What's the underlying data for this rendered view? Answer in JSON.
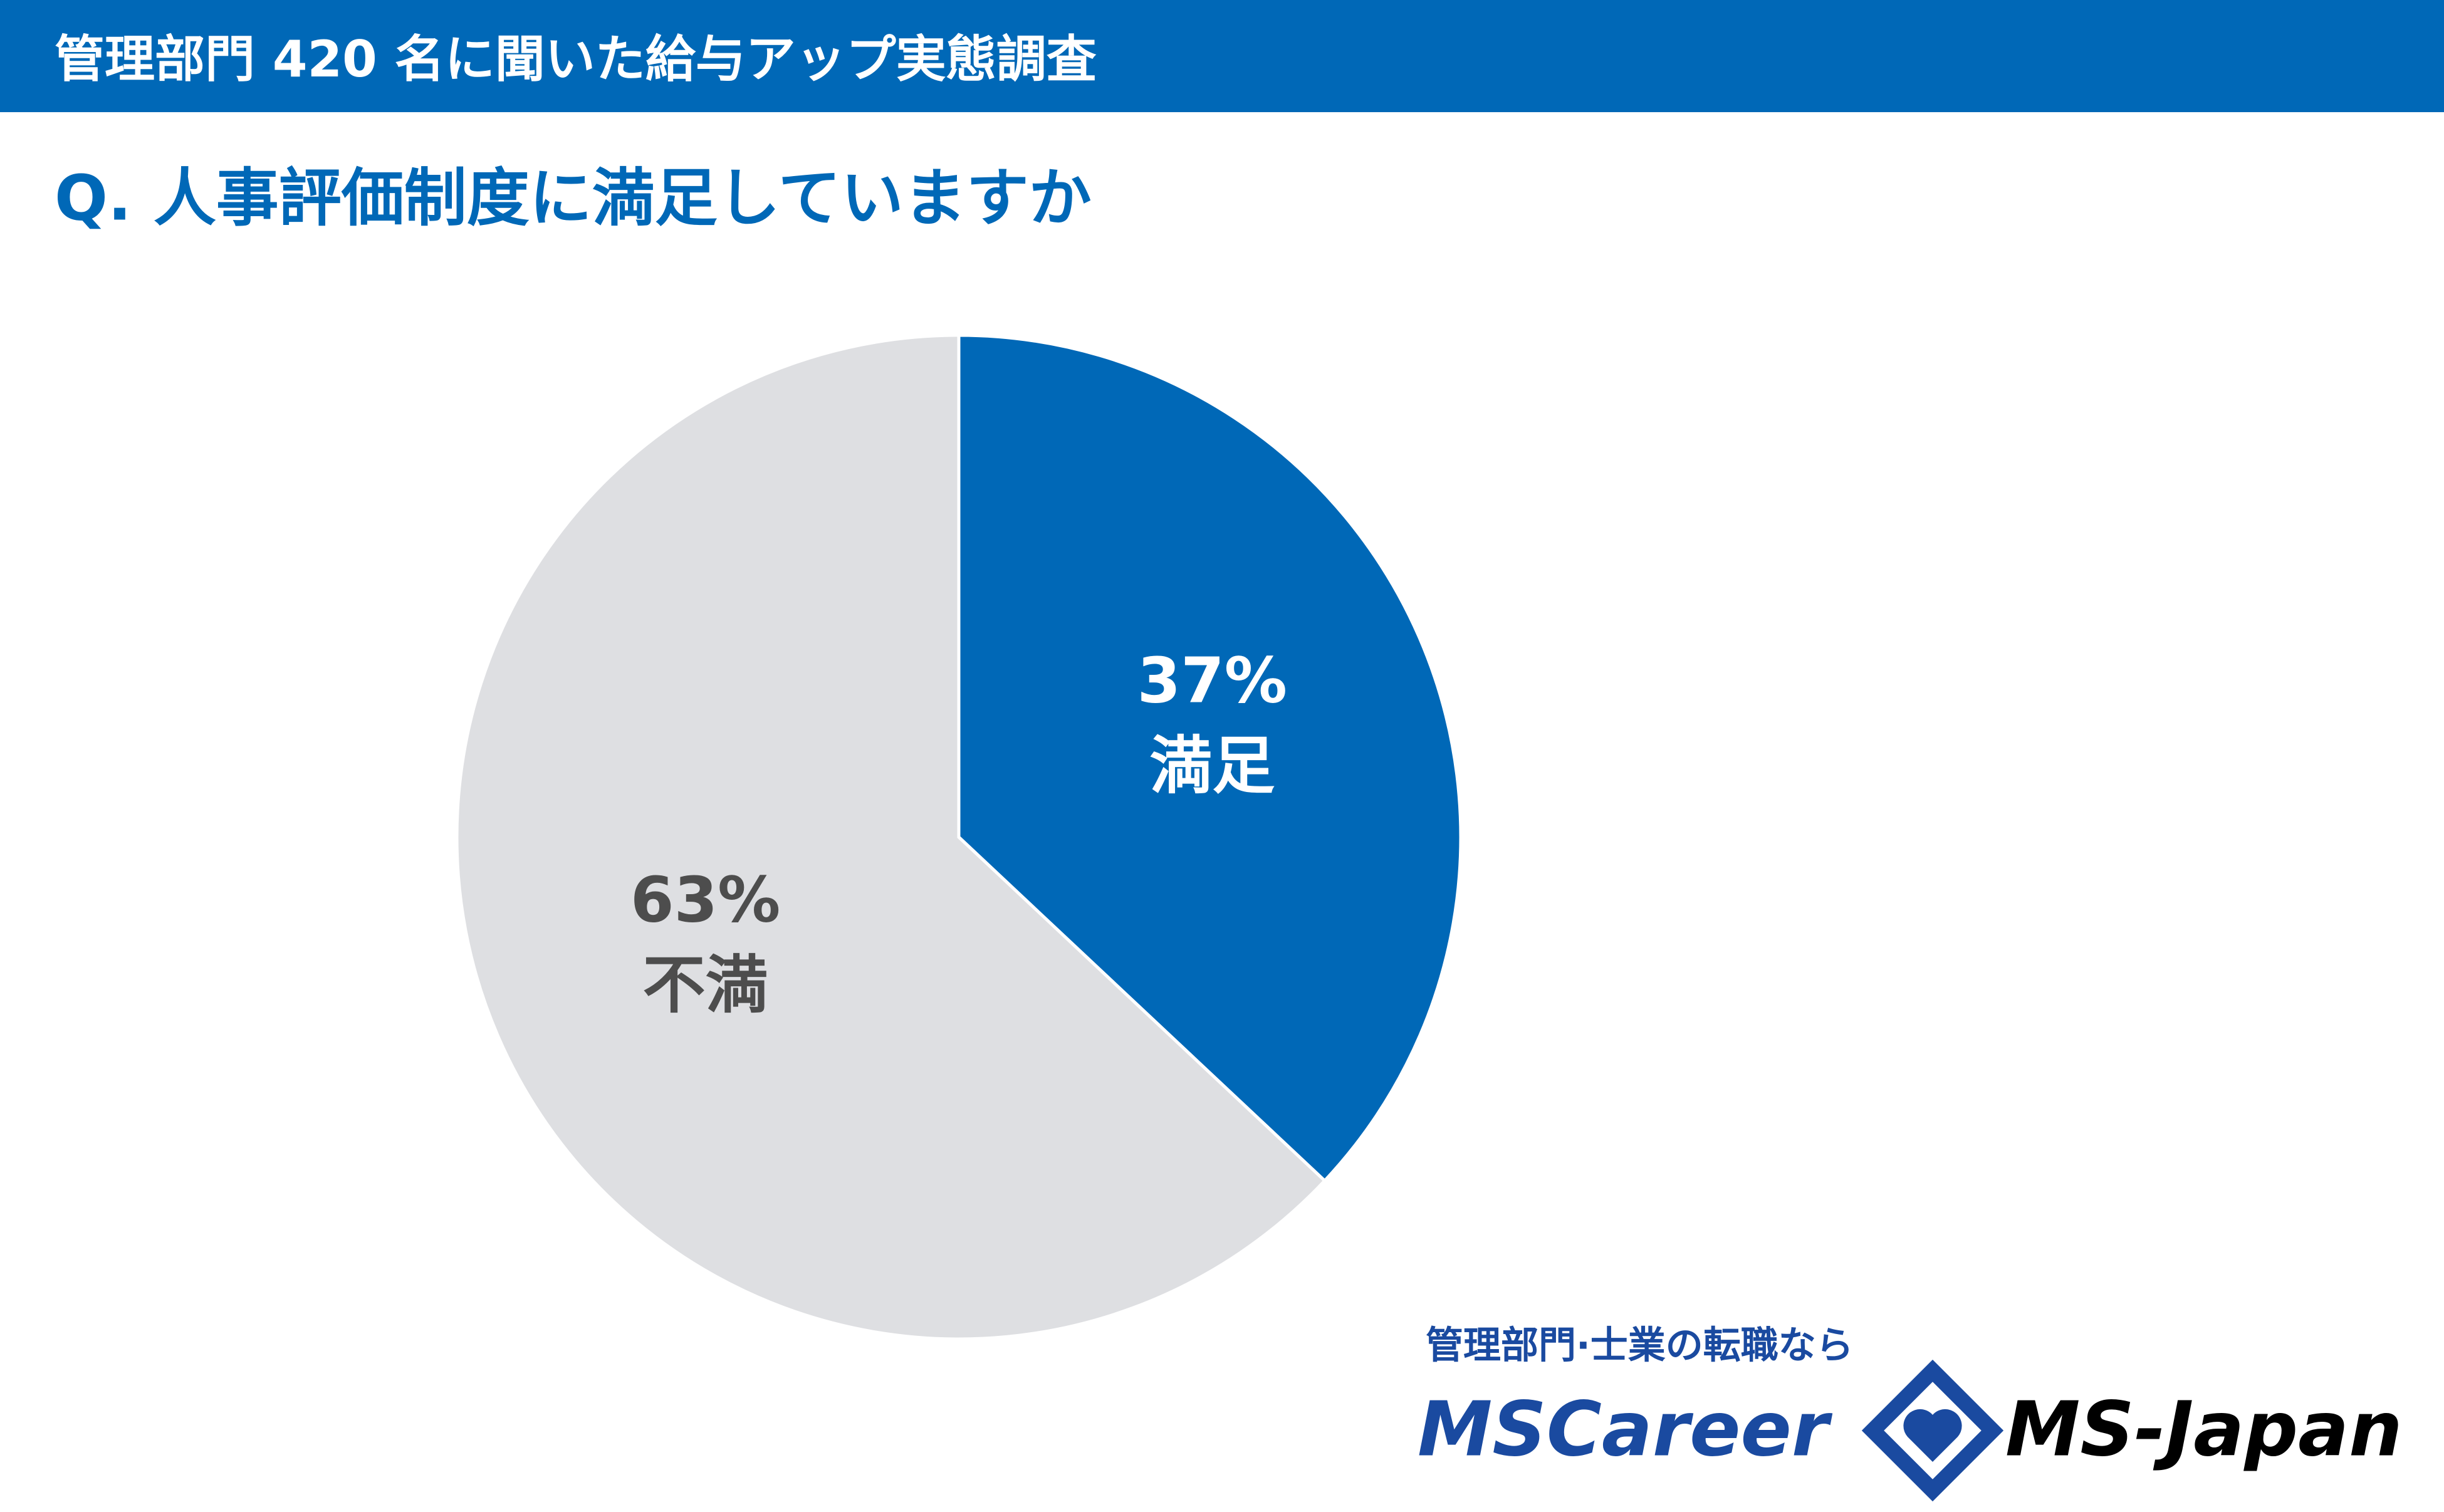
{
  "chart_data": {
    "type": "pie",
    "title": "管理部門 420 名に聞いた給与アップ実態調査",
    "subtitle": "Q. 人事評価制度に満足していますか",
    "categories": [
      "満足",
      "不満"
    ],
    "values": [
      37,
      63
    ],
    "value_labels": [
      "37%",
      "63%"
    ],
    "colors": [
      "#0068b7",
      "#dedfe2"
    ],
    "label_colors": [
      "#ffffff",
      "#4d4d4d"
    ],
    "annotations": [
      "管理部門·士業の転職なら",
      "MSCareer",
      "MS-Japan"
    ]
  }
}
